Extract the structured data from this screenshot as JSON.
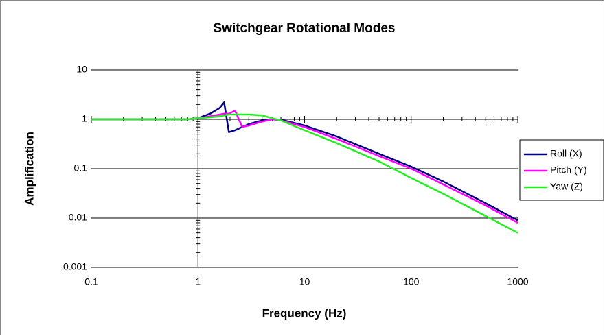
{
  "chart_data": {
    "type": "line",
    "title": "Switchgear Rotational Modes",
    "xlabel": "Frequency (Hz)",
    "ylabel": "Amplification",
    "log_x": true,
    "log_y": true,
    "grid": true,
    "legend": "right",
    "x": [
      0.1,
      0.5,
      0.8,
      1,
      1.3,
      1.6,
      1.76,
      1.95,
      2.23,
      2.6,
      3,
      4,
      5,
      6,
      10,
      20,
      50,
      100,
      200,
      500,
      1000
    ],
    "series": [
      {
        "name": "Roll (X)",
        "color": "#000080",
        "values": [
          1,
          1,
          1,
          1.05,
          1.3,
          1.7,
          2.2,
          0.55,
          0.6,
          0.7,
          0.8,
          0.95,
          1.0,
          0.98,
          0.75,
          0.45,
          0.2,
          0.11,
          0.055,
          0.02,
          0.009
        ]
      },
      {
        "name": "Pitch (Y)",
        "color": "#ff00ff",
        "values": [
          1,
          1,
          1,
          1.05,
          1.15,
          1.25,
          1.3,
          1.3,
          1.5,
          0.7,
          0.75,
          0.9,
          1.0,
          0.95,
          0.7,
          0.4,
          0.18,
          0.1,
          0.048,
          0.018,
          0.008
        ]
      },
      {
        "name": "Yaw (Z)",
        "color": "#22ee22",
        "values": [
          1,
          1,
          1,
          1.05,
          1.1,
          1.15,
          1.2,
          1.25,
          1.25,
          1.25,
          1.25,
          1.2,
          1.05,
          0.95,
          0.6,
          0.33,
          0.14,
          0.065,
          0.031,
          0.011,
          0.005
        ]
      }
    ],
    "xlim": [
      0.1,
      1000
    ],
    "xticks": [
      0.1,
      1,
      10,
      100,
      1000
    ],
    "ylim": [
      0.001,
      10
    ],
    "yticks": [
      0.001,
      0.01,
      0.1,
      1,
      10
    ]
  }
}
